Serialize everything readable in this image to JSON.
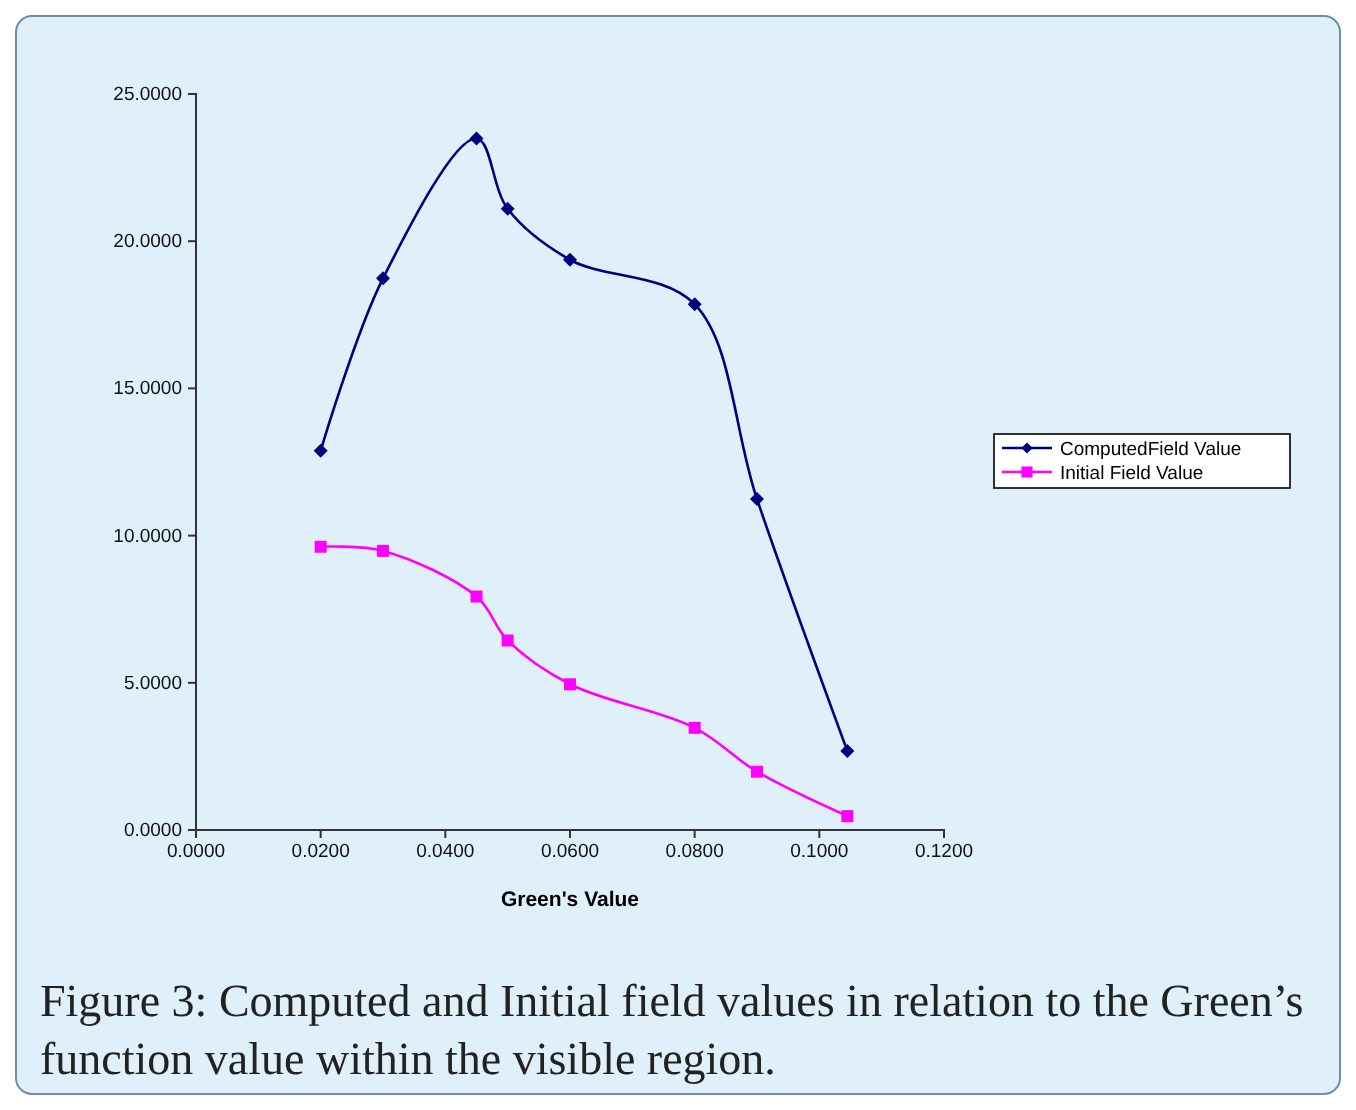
{
  "chart_data": {
    "type": "line",
    "xlabel": "Green's Value",
    "x": [
      0.02,
      0.03,
      0.045,
      0.05,
      0.06,
      0.08,
      0.09,
      0.1045
    ],
    "series": [
      {
        "name": "ComputedField Value",
        "color": "#000080",
        "marker": "diamond",
        "values": [
          12.88,
          18.74,
          23.49,
          21.1,
          19.37,
          17.86,
          11.24,
          2.68
        ]
      },
      {
        "name": "Initial Field Value",
        "color": "#ff00ff",
        "marker": "square",
        "values": [
          9.62,
          9.48,
          7.93,
          6.44,
          4.95,
          3.47,
          1.98,
          0.47
        ]
      }
    ],
    "xlim": [
      0,
      0.12
    ],
    "xticks": [
      {
        "value": 0,
        "label": "0.0000"
      },
      {
        "value": 0.02,
        "label": "0.0200"
      },
      {
        "value": 0.04,
        "label": "0.0400"
      },
      {
        "value": 0.06,
        "label": "0.0600"
      },
      {
        "value": 0.08,
        "label": "0.0800"
      },
      {
        "value": 0.1,
        "label": "0.1000"
      },
      {
        "value": 0.12,
        "label": "0.1200"
      }
    ],
    "ylim": [
      0,
      25
    ],
    "yticks": [
      {
        "value": 0,
        "label": "0.0000"
      },
      {
        "value": 5,
        "label": "5.0000"
      },
      {
        "value": 10,
        "label": "10.0000"
      },
      {
        "value": 15,
        "label": "15.0000"
      },
      {
        "value": 20,
        "label": "20.0000"
      },
      {
        "value": 25,
        "label": "25.0000"
      }
    ],
    "grid": false,
    "legend": "right",
    "annotations": [
      "Figure 3: Computed and Initial field values in relation to the Green’s function value within the visible region."
    ]
  }
}
